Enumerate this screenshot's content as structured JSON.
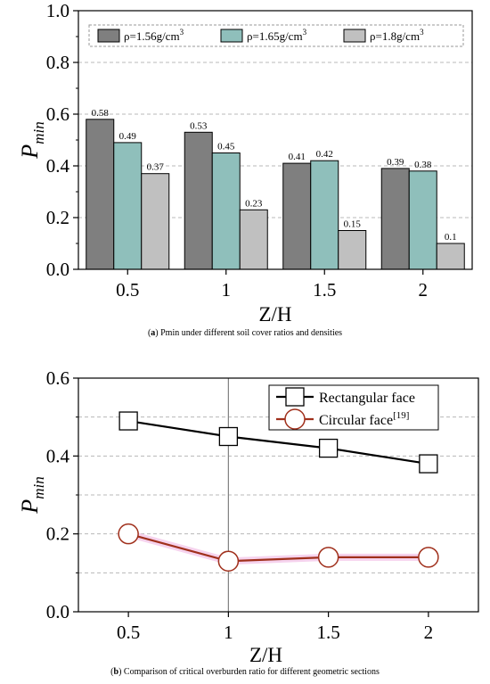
{
  "chart_data": [
    {
      "type": "bar",
      "categories": [
        "0.5",
        "1",
        "1.5",
        "2"
      ],
      "series": [
        {
          "name": "ρ=1.56g/cm",
          "name_sup": "3",
          "color": "#7f7f7f",
          "values": [
            0.58,
            0.53,
            0.41,
            0.39
          ]
        },
        {
          "name": "ρ=1.65g/cm",
          "name_sup": "3",
          "color": "#8fbfbb",
          "values": [
            0.49,
            0.45,
            0.42,
            0.38
          ]
        },
        {
          "name": "ρ=1.8g/cm",
          "name_sup": "3",
          "color": "#c0c0c0",
          "values": [
            0.37,
            0.23,
            0.15,
            0.1
          ]
        }
      ],
      "data_labels": [
        [
          "0.58",
          "0.53",
          "0.41",
          "0.39"
        ],
        [
          "0.49",
          "0.45",
          "0.42",
          "0.38"
        ],
        [
          "0.37",
          "0.23",
          "0.15",
          "0.1"
        ]
      ],
      "ylim": [
        0,
        1.0
      ],
      "yticks": [
        "0.0",
        "0.2",
        "0.4",
        "0.6",
        "0.8",
        "1.0"
      ],
      "xlabel": "Z/H",
      "ylabel_main": "P",
      "ylabel_sub": "min",
      "grid": "horizontal dashed",
      "legend_position": "top",
      "caption_letter": "a",
      "caption": "Pmin under different soil cover ratios and densities"
    },
    {
      "type": "line",
      "x": [
        0.5,
        1,
        1.5,
        2
      ],
      "xticks": [
        "0.5",
        "1",
        "1.5",
        "2"
      ],
      "xlim": [
        0.25,
        2.25
      ],
      "series": [
        {
          "name": "Rectangular face",
          "name_sup": "",
          "marker": "square",
          "color": "#000000",
          "values": [
            0.49,
            0.45,
            0.42,
            0.38
          ]
        },
        {
          "name": "Circular face",
          "name_sup": "[19]",
          "marker": "circle",
          "color": "#a0301c",
          "values": [
            0.2,
            0.13,
            0.14,
            0.14
          ]
        }
      ],
      "ylim": [
        0,
        0.6
      ],
      "yticks": [
        "0.0",
        "0.2",
        "0.4",
        "0.6"
      ],
      "vline_x": 1,
      "xlabel": "Z/H",
      "ylabel_main": "P",
      "ylabel_sub": "min",
      "grid": "horizontal dashed",
      "legend_position": "top-right",
      "caption_letter": "b",
      "caption": "Comparison of critical overburden ratio for different geometric sections"
    }
  ]
}
